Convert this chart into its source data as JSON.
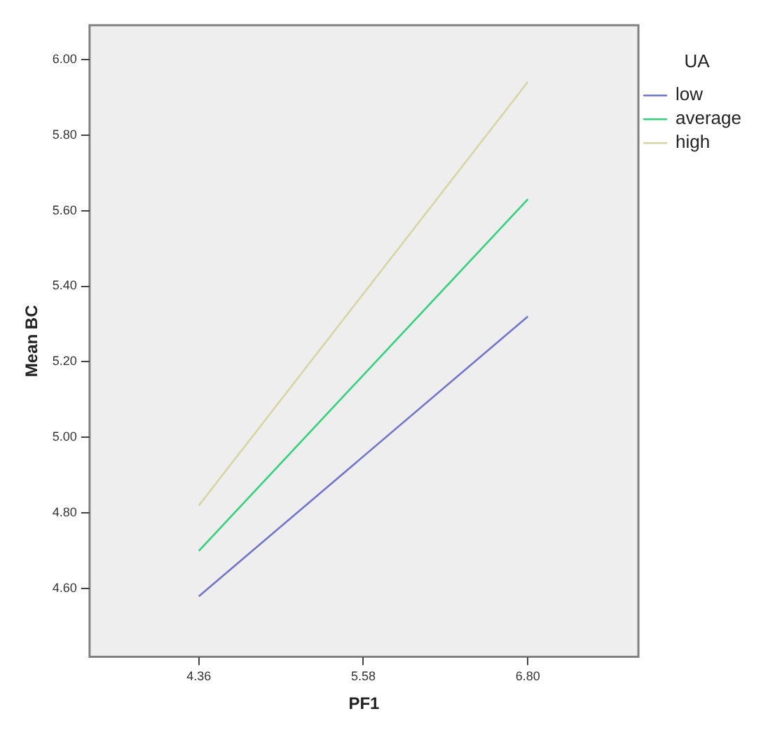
{
  "chart_data": {
    "type": "line",
    "xlabel": "PF1",
    "ylabel": "Mean BC",
    "legend_title": "UA",
    "legend": "right",
    "x": [
      4.36,
      6.8
    ],
    "series": [
      {
        "name": "low",
        "color": "#7075cc",
        "values": [
          4.58,
          5.32
        ]
      },
      {
        "name": "average",
        "color": "#30d27c",
        "values": [
          4.7,
          5.63
        ]
      },
      {
        "name": "high",
        "color": "#d6d6a4",
        "values": [
          4.82,
          5.94
        ]
      }
    ],
    "xlim": [
      3.55,
      7.62
    ],
    "xticks": [
      {
        "value": 4.36,
        "label": "4.36"
      },
      {
        "value": 5.58,
        "label": "5.58"
      },
      {
        "value": 6.8,
        "label": "6.80"
      }
    ],
    "ylim": [
      4.42,
      6.09
    ],
    "yticks": [
      {
        "value": 4.6,
        "label": "4.60"
      },
      {
        "value": 4.8,
        "label": "4.80"
      },
      {
        "value": 5,
        "label": "5.00"
      },
      {
        "value": 5.2,
        "label": "5.20"
      },
      {
        "value": 5.4,
        "label": "5.40"
      },
      {
        "value": 5.6,
        "label": "5.60"
      },
      {
        "value": 5.8,
        "label": "5.80"
      },
      {
        "value": 6,
        "label": "6.00"
      }
    ],
    "grid": false,
    "marker": "none",
    "line_style": "solid"
  }
}
